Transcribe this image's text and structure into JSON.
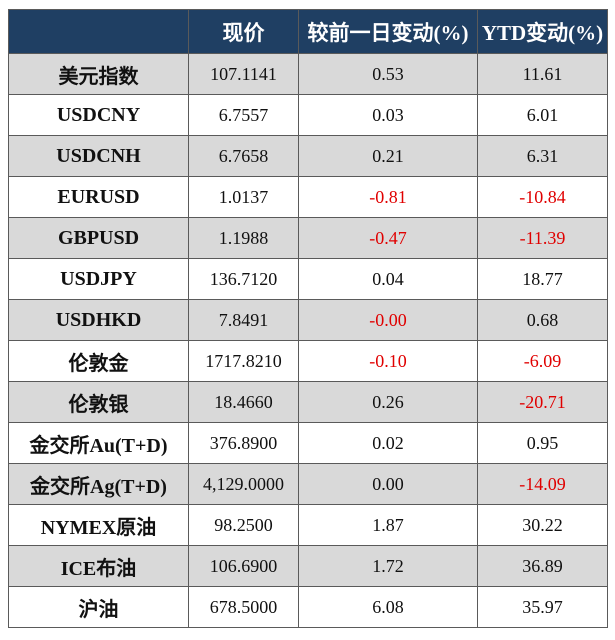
{
  "header": {
    "col0": "",
    "col1": "现价",
    "col2": "较前一日变动(%)",
    "col3": "YTD变动(%)"
  },
  "rows": [
    {
      "name": "美元指数",
      "price": "107.1141",
      "daily": "0.53",
      "ytd": "11.61"
    },
    {
      "name": "USDCNY",
      "price": "6.7557",
      "daily": "0.03",
      "ytd": "6.01"
    },
    {
      "name": "USDCNH",
      "price": "6.7658",
      "daily": "0.21",
      "ytd": "6.31"
    },
    {
      "name": "EURUSD",
      "price": "1.0137",
      "daily": "-0.81",
      "ytd": "-10.84"
    },
    {
      "name": "GBPUSD",
      "price": "1.1988",
      "daily": "-0.47",
      "ytd": "-11.39"
    },
    {
      "name": "USDJPY",
      "price": "136.7120",
      "daily": "0.04",
      "ytd": "18.77"
    },
    {
      "name": "USDHKD",
      "price": "7.8491",
      "daily": "-0.00",
      "ytd": "0.68"
    },
    {
      "name": "伦敦金",
      "price": "1717.8210",
      "daily": "-0.10",
      "ytd": "-6.09"
    },
    {
      "name": "伦敦银",
      "price": "18.4660",
      "daily": "0.26",
      "ytd": "-20.71"
    },
    {
      "name": "金交所Au(T+D)",
      "price": "376.8900",
      "daily": "0.02",
      "ytd": "0.95"
    },
    {
      "name": "金交所Ag(T+D)",
      "price": "4,129.0000",
      "daily": "0.00",
      "ytd": "-14.09"
    },
    {
      "name": "NYMEX原油",
      "price": "98.2500",
      "daily": "1.87",
      "ytd": "30.22"
    },
    {
      "name": "ICE布油",
      "price": "106.6900",
      "daily": "1.72",
      "ytd": "36.89"
    },
    {
      "name": "沪油",
      "price": "678.5000",
      "daily": "6.08",
      "ytd": "35.97"
    }
  ],
  "colors": {
    "header_bg": "#1f3f63",
    "header_text": "#ffffff",
    "stripe": "#d9d9d9",
    "negative": "#e00000"
  }
}
